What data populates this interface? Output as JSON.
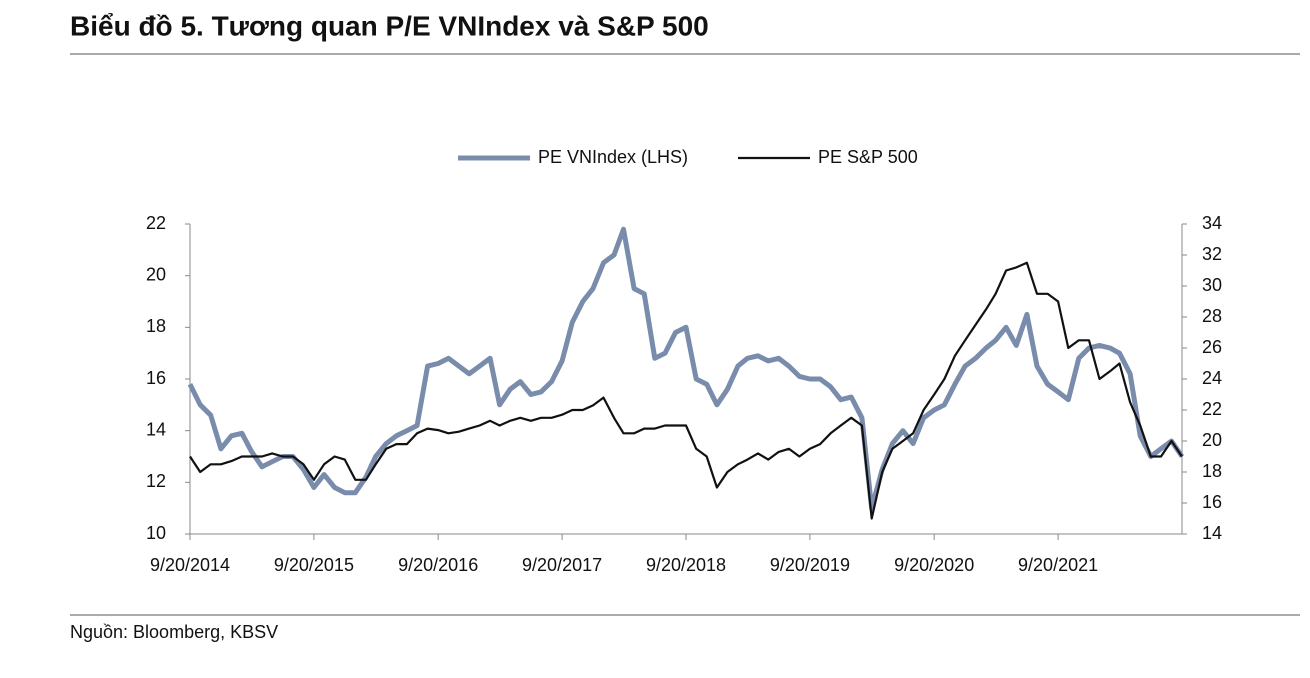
{
  "title": "Biểu đồ 5. Tương quan P/E VNIndex và S&P 500",
  "source": "Nguồn: Bloomberg, KBSV",
  "chart_data": {
    "type": "line",
    "legend": "top",
    "x": [
      "2014-09-20",
      "2014-10-20",
      "2014-11-20",
      "2014-12-20",
      "2015-01-20",
      "2015-02-20",
      "2015-03-20",
      "2015-04-20",
      "2015-05-20",
      "2015-06-20",
      "2015-07-20",
      "2015-08-20",
      "2015-09-20",
      "2015-10-20",
      "2015-11-20",
      "2015-12-20",
      "2016-01-20",
      "2016-02-20",
      "2016-03-20",
      "2016-04-20",
      "2016-05-20",
      "2016-06-20",
      "2016-07-20",
      "2016-08-20",
      "2016-09-20",
      "2016-10-20",
      "2016-11-20",
      "2016-12-20",
      "2017-01-20",
      "2017-02-20",
      "2017-03-20",
      "2017-04-20",
      "2017-05-20",
      "2017-06-20",
      "2017-07-20",
      "2017-08-20",
      "2017-09-20",
      "2017-10-20",
      "2017-11-20",
      "2017-12-20",
      "2018-01-20",
      "2018-02-20",
      "2018-03-20",
      "2018-04-20",
      "2018-05-20",
      "2018-06-20",
      "2018-07-20",
      "2018-08-20",
      "2018-09-20",
      "2018-10-20",
      "2018-11-20",
      "2018-12-20",
      "2019-01-20",
      "2019-02-20",
      "2019-03-20",
      "2019-04-20",
      "2019-05-20",
      "2019-06-20",
      "2019-07-20",
      "2019-08-20",
      "2019-09-20",
      "2019-10-20",
      "2019-11-20",
      "2019-12-20",
      "2020-01-20",
      "2020-02-20",
      "2020-03-20",
      "2020-04-20",
      "2020-05-20",
      "2020-06-20",
      "2020-07-20",
      "2020-08-20",
      "2020-09-20",
      "2020-10-20",
      "2020-11-20",
      "2020-12-20",
      "2021-01-20",
      "2021-02-20",
      "2021-03-20",
      "2021-04-20",
      "2021-05-20",
      "2021-06-20",
      "2021-07-20",
      "2021-08-20",
      "2021-09-20",
      "2021-10-20",
      "2021-11-20",
      "2021-12-20",
      "2022-01-20",
      "2022-02-20",
      "2022-03-20",
      "2022-04-20",
      "2022-05-20",
      "2022-06-20",
      "2022-07-20",
      "2022-08-20",
      "2022-09-20"
    ],
    "series": [
      {
        "name": "PE VNIndex (LHS)",
        "color": "#7a8cab",
        "axis": "y",
        "values": [
          15.8,
          15.0,
          14.6,
          13.3,
          13.8,
          13.9,
          13.2,
          12.6,
          12.8,
          13.0,
          13.0,
          12.5,
          11.8,
          12.3,
          11.8,
          11.6,
          11.6,
          12.2,
          13.0,
          13.5,
          13.8,
          14.0,
          14.2,
          16.5,
          16.6,
          16.8,
          16.5,
          16.2,
          16.5,
          16.8,
          15.0,
          15.6,
          15.9,
          15.4,
          15.5,
          15.9,
          16.7,
          18.2,
          19.0,
          19.5,
          20.5,
          20.8,
          21.8,
          19.5,
          19.3,
          16.8,
          17.0,
          17.8,
          18.0,
          16.0,
          15.8,
          15.0,
          15.6,
          16.5,
          16.8,
          16.9,
          16.7,
          16.8,
          16.5,
          16.1,
          16.0,
          16.0,
          15.7,
          15.2,
          15.3,
          14.5,
          11.0,
          12.5,
          13.5,
          14.0,
          13.5,
          14.5,
          14.8,
          15.0,
          15.8,
          16.5,
          16.8,
          17.2,
          17.5,
          18.0,
          17.3,
          18.5,
          16.5,
          15.8,
          15.5,
          15.2,
          16.8,
          17.2,
          17.3,
          17.2,
          17.0,
          16.2,
          13.8,
          13.0,
          13.3,
          13.6,
          13.0
        ]
      },
      {
        "name": "PE S&P 500",
        "color": "#111111",
        "axis": "y2",
        "values": [
          19,
          18,
          18.5,
          18.5,
          18.7,
          19,
          19,
          19,
          19.2,
          19,
          19,
          18.5,
          17.5,
          18.5,
          19,
          18.8,
          17.5,
          17.5,
          18.5,
          19.5,
          19.8,
          19.8,
          20.5,
          20.8,
          20.7,
          20.5,
          20.6,
          20.8,
          21.0,
          21.3,
          21.0,
          21.3,
          21.5,
          21.3,
          21.5,
          21.5,
          21.7,
          22.0,
          22.0,
          22.3,
          22.8,
          21.5,
          20.5,
          20.5,
          20.8,
          20.8,
          21.0,
          21.0,
          21.0,
          19.5,
          19.0,
          17.0,
          18.0,
          18.5,
          18.8,
          19.2,
          18.8,
          19.3,
          19.5,
          19.0,
          19.5,
          19.8,
          20.5,
          21.0,
          21.5,
          21.0,
          15.0,
          18.0,
          19.5,
          20.0,
          20.5,
          22.0,
          23.0,
          24.0,
          25.5,
          26.5,
          27.5,
          28.5,
          29.5,
          31.0,
          31.2,
          31.5,
          29.5,
          29.5,
          29.0,
          26.0,
          26.5,
          26.5,
          24.0,
          24.5,
          25.0,
          22.5,
          21.0,
          19.0,
          19.0,
          20.0,
          19.0
        ]
      }
    ],
    "xlim": [
      "2014-09-20",
      "2022-09-20"
    ],
    "xticks": [
      {
        "value": "2014-09-20",
        "label": "9/20/2014"
      },
      {
        "value": "2015-09-20",
        "label": "9/20/2015"
      },
      {
        "value": "2016-09-20",
        "label": "9/20/2016"
      },
      {
        "value": "2017-09-20",
        "label": "9/20/2017"
      },
      {
        "value": "2018-09-20",
        "label": "9/20/2018"
      },
      {
        "value": "2019-09-20",
        "label": "9/20/2019"
      },
      {
        "value": "2020-09-20",
        "label": "9/20/2020"
      },
      {
        "value": "2021-09-20",
        "label": "9/20/2021"
      }
    ],
    "ylim": [
      10,
      22
    ],
    "yticks": [
      10,
      12,
      14,
      16,
      18,
      20,
      22
    ],
    "y2lim": [
      14,
      34
    ],
    "y2ticks": [
      14,
      16,
      18,
      20,
      22,
      24,
      26,
      28,
      30,
      32,
      34
    ],
    "grid": false
  }
}
